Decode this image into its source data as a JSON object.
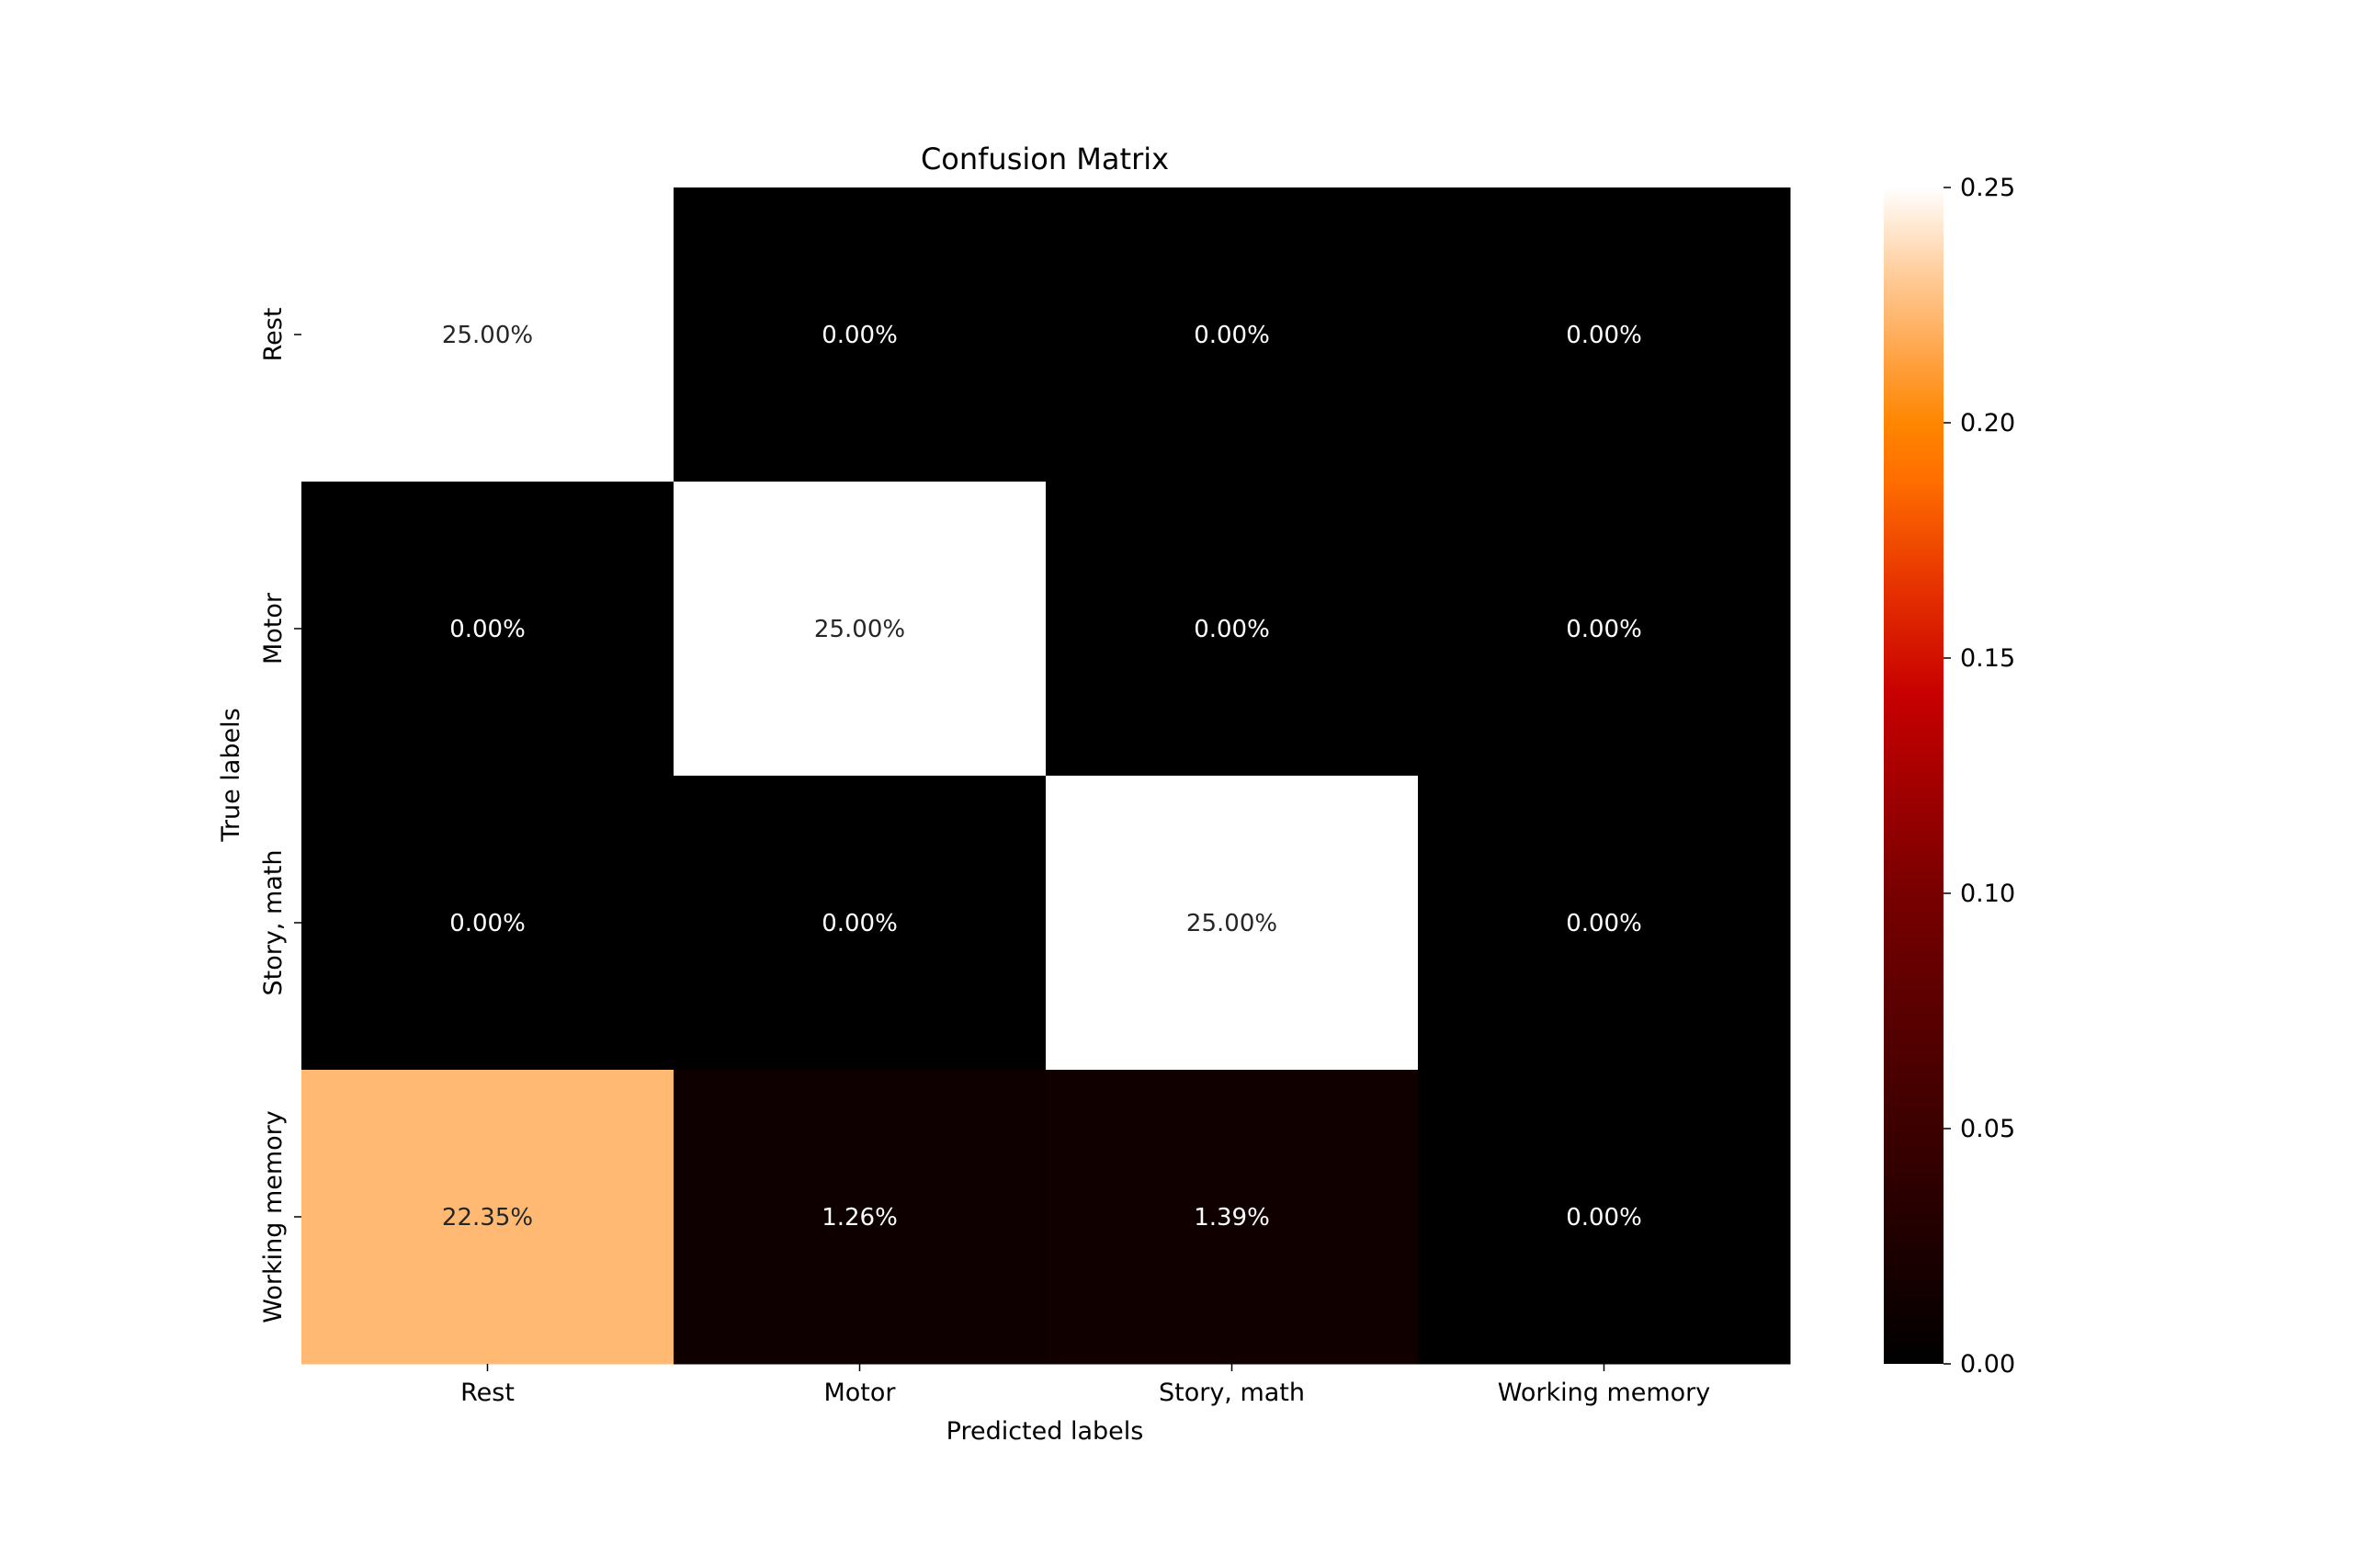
{
  "chart_data": {
    "type": "heatmap",
    "title": "Confusion Matrix",
    "xlabel": "Predicted labels",
    "ylabel": "True labels",
    "x_categories": [
      "Rest",
      "Motor",
      "Story, math",
      "Working memory"
    ],
    "y_categories": [
      "Rest",
      "Motor",
      "Story, math",
      "Working memory"
    ],
    "values": [
      [
        0.25,
        0.0,
        0.0,
        0.0
      ],
      [
        0.0,
        0.25,
        0.0,
        0.0
      ],
      [
        0.0,
        0.0,
        0.25,
        0.0
      ],
      [
        0.2235,
        0.0126,
        0.0139,
        0.0
      ]
    ],
    "cell_labels": [
      [
        "25.00%",
        "0.00%",
        "0.00%",
        "0.00%"
      ],
      [
        "0.00%",
        "25.00%",
        "0.00%",
        "0.00%"
      ],
      [
        "0.00%",
        "0.00%",
        "25.00%",
        "0.00%"
      ],
      [
        "22.35%",
        "1.26%",
        "1.39%",
        "0.00%"
      ]
    ],
    "colormap": "gist_heat",
    "vmin": 0.0,
    "vmax": 0.25,
    "colorbar_ticks": [
      0.0,
      0.05,
      0.1,
      0.15,
      0.2,
      0.25
    ],
    "colorbar_tick_labels": [
      "0.00",
      "0.05",
      "0.10",
      "0.15",
      "0.20",
      "0.25"
    ]
  }
}
